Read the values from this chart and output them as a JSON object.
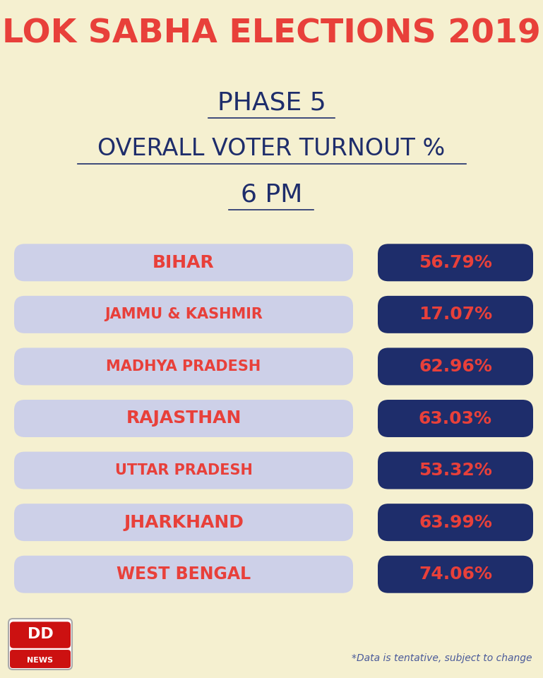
{
  "title_line1": "LOK SABHA ELECTIONS 2019",
  "subtitle_line1": "PHASE 5",
  "subtitle_line2": "OVERALL VOTER TURNOUT %",
  "subtitle_line3": "6 PM",
  "background_color": "#f5f0d0",
  "title_color": "#e8403a",
  "subtitle_color": "#1e2d6b",
  "state_box_color": "#cdd0e8",
  "value_box_color": "#1e2d6b",
  "state_text_color": "#e8403a",
  "value_text_color": "#e8403a",
  "footer_note": "*Data is tentative, subject to change",
  "footer_color": "#4a5a9a",
  "states": [
    "BIHAR",
    "JAMMU & KASHMIR",
    "MADHYA PRADESH",
    "RAJASTHAN",
    "UTTAR PRADESH",
    "JHARKHAND",
    "WEST BENGAL"
  ],
  "values": [
    "56.79%",
    "17.07%",
    "62.96%",
    "63.03%",
    "53.32%",
    "63.99%",
    "74.06%"
  ],
  "dd_box_color": "#cc1111",
  "dd_text_color": "#ffffff",
  "underline_color": "#1e2d6b",
  "fig_width": 7.69,
  "fig_height": 9.6,
  "dpi": 100
}
